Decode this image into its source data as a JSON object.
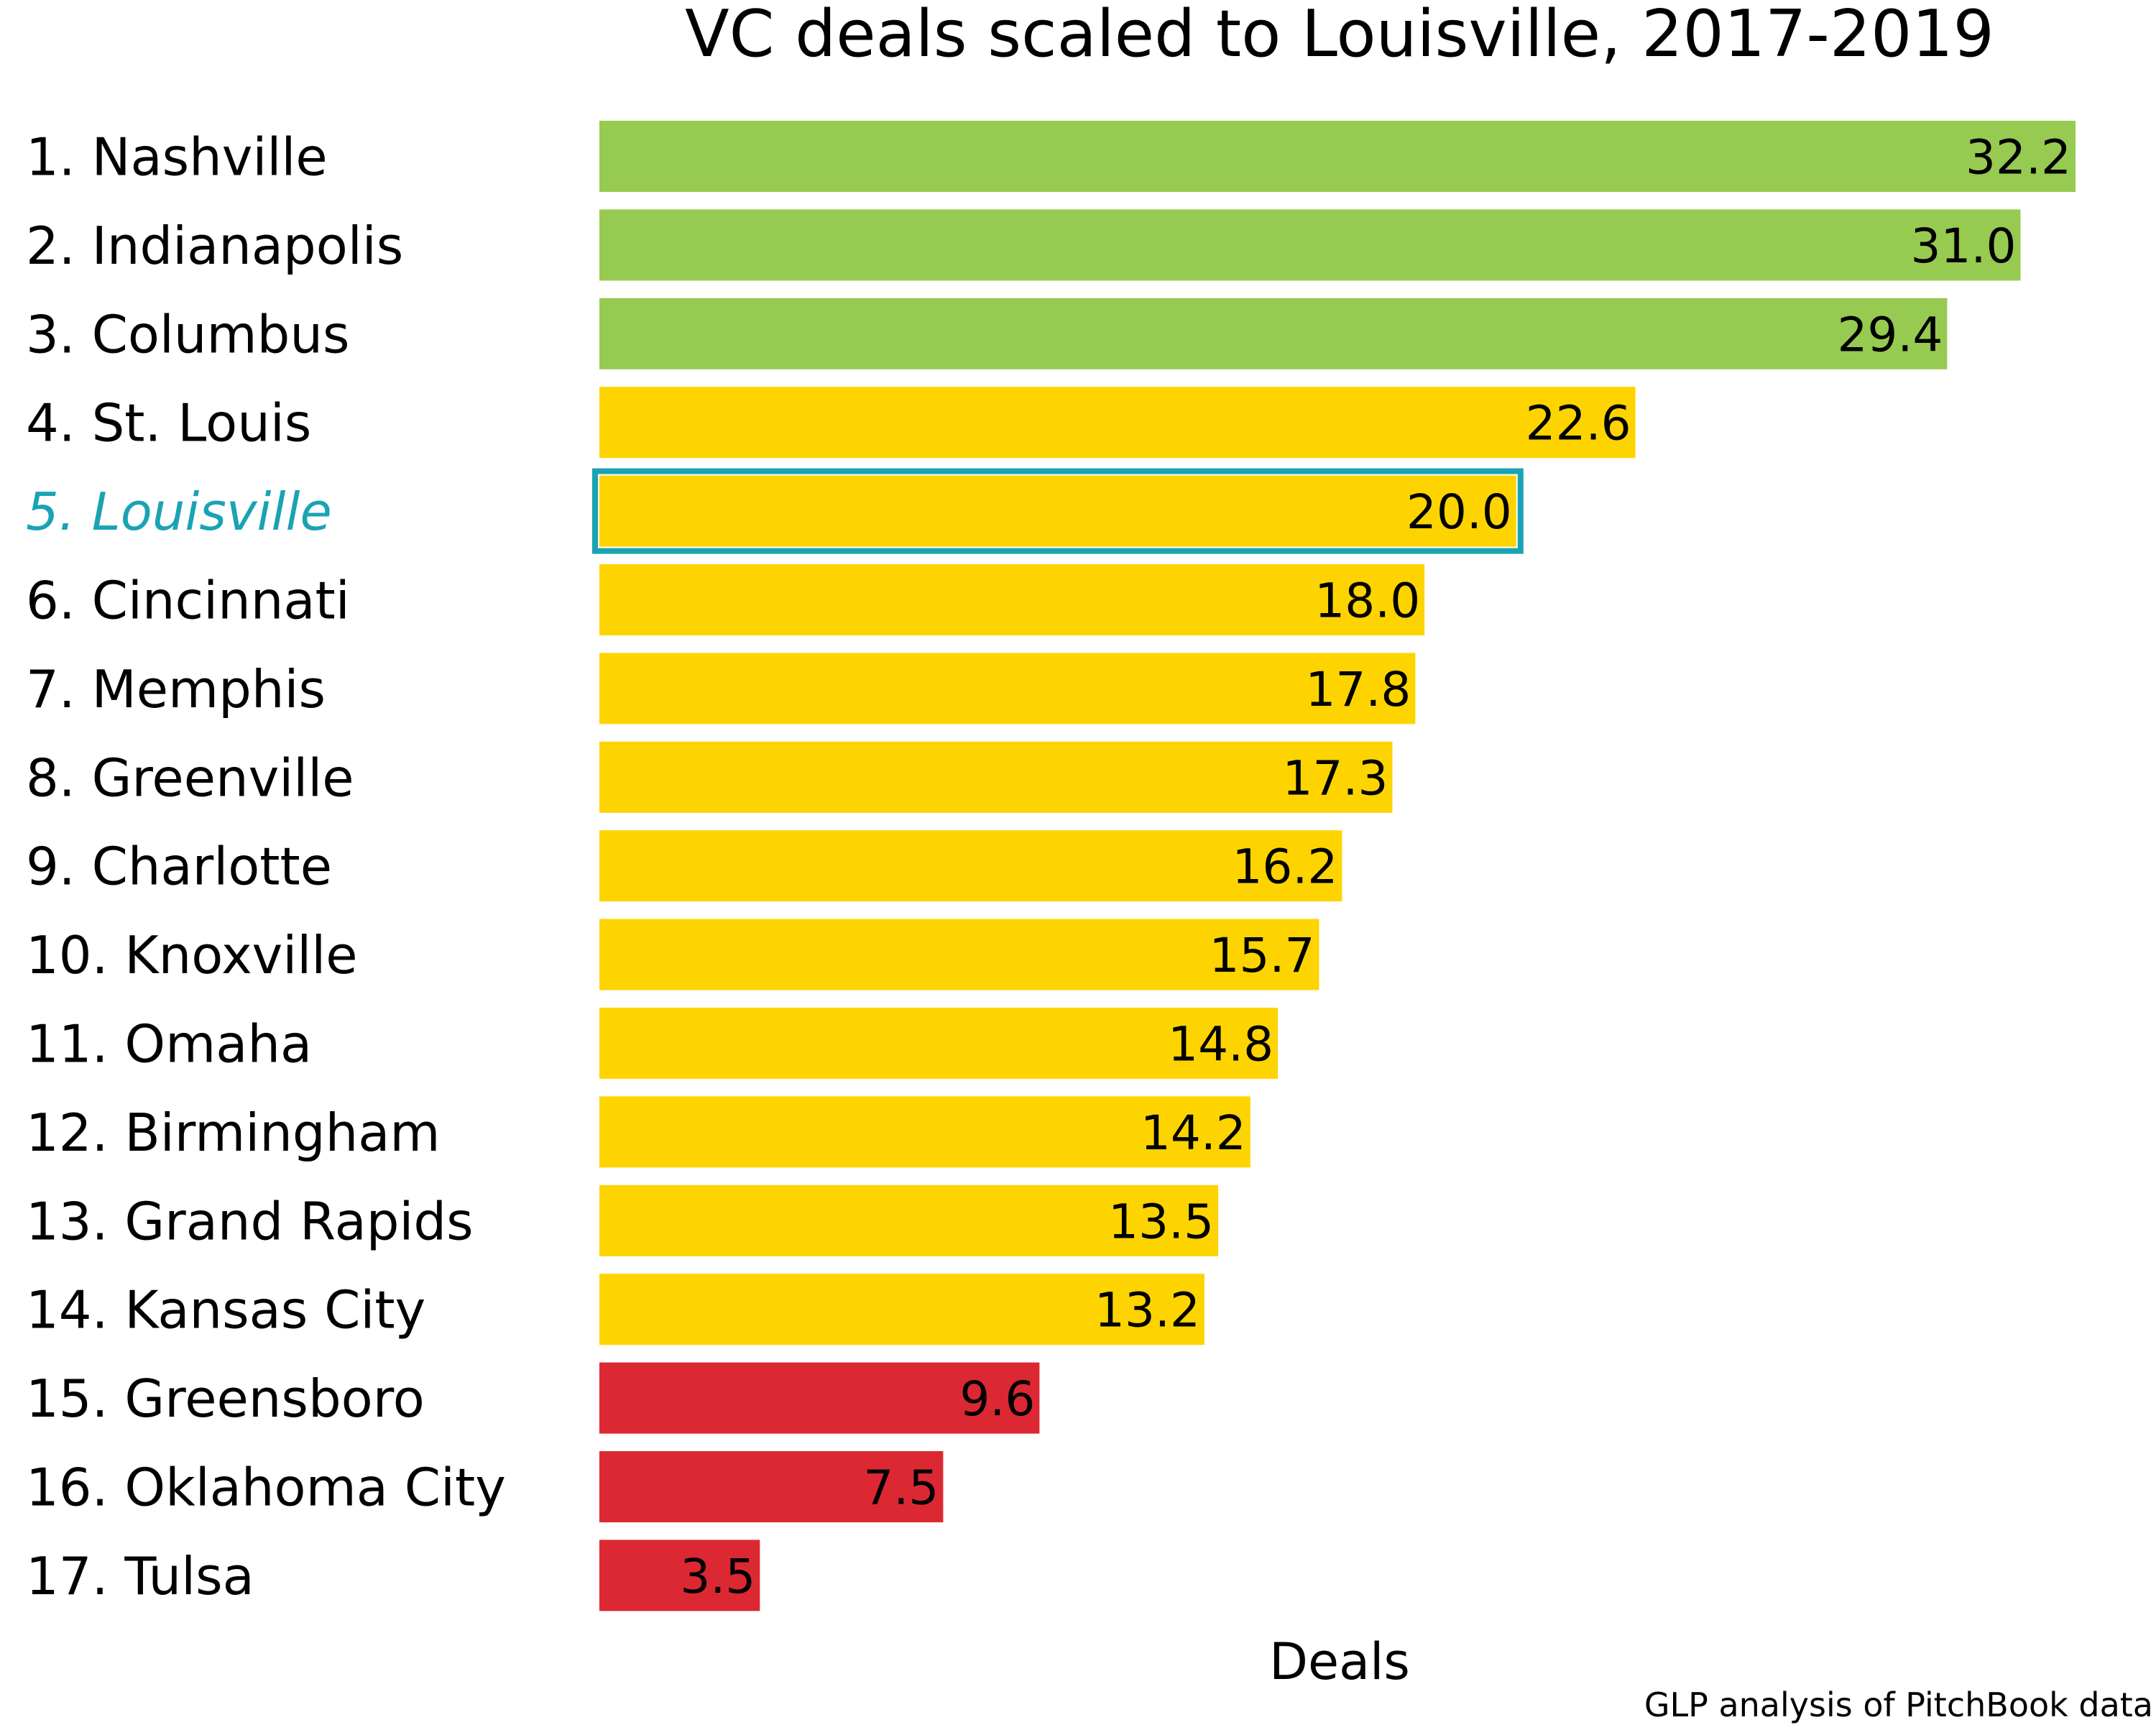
{
  "chart_data": {
    "type": "bar",
    "orientation": "horizontal",
    "title": "VC deals scaled to Louisville, 2017-2019",
    "xlabel": "Deals",
    "ylabel": "",
    "source": "GLP analysis of PitchBook data",
    "xlim": [
      0,
      32.2
    ],
    "grid": false,
    "legend": "none",
    "categories": [
      "1. Nashville",
      "2. Indianapolis",
      "3. Columbus",
      "4. St. Louis",
      "5. Louisville",
      "6. Cincinnati",
      "7. Memphis",
      "8. Greenville",
      "9. Charlotte",
      "10. Knoxville",
      "11. Omaha",
      "12. Birmingham",
      "13. Grand Rapids",
      "14. Kansas City",
      "15. Greensboro",
      "16. Oklahoma City",
      "17. Tulsa"
    ],
    "values": [
      32.2,
      31.0,
      29.4,
      22.6,
      20.0,
      18.0,
      17.8,
      17.3,
      16.2,
      15.7,
      14.8,
      14.2,
      13.5,
      13.2,
      9.6,
      7.5,
      3.5
    ],
    "value_labels": [
      "32.2",
      "31.0",
      "29.4",
      "22.6",
      "20.0",
      "18.0",
      "17.8",
      "17.3",
      "16.2",
      "15.7",
      "14.8",
      "14.2",
      "13.5",
      "13.2",
      "9.6",
      "7.5",
      "3.5"
    ],
    "tiers": [
      "top",
      "top",
      "top",
      "middle",
      "middle",
      "middle",
      "middle",
      "middle",
      "middle",
      "middle",
      "middle",
      "middle",
      "middle",
      "middle",
      "bottom",
      "bottom",
      "bottom"
    ],
    "tier_colors": {
      "top": "#97ca50",
      "middle": "#fed400",
      "bottom": "#dc2832"
    },
    "highlight_index": 4,
    "highlight_color": "#1aa3b3",
    "text_color": "#000000",
    "background_color": "#ffffff"
  }
}
